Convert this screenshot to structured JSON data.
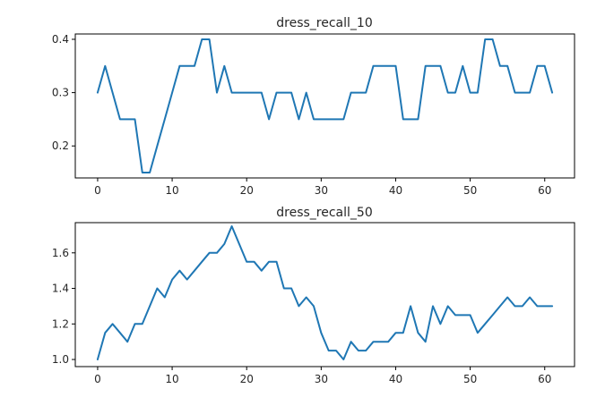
{
  "chart_data": [
    {
      "type": "line",
      "title": "dress_recall_10",
      "xlabel": "",
      "ylabel": "",
      "xlim": [
        -3,
        64
      ],
      "ylim": [
        0.14,
        0.41
      ],
      "xticks": [
        0,
        10,
        20,
        30,
        40,
        50,
        60
      ],
      "yticks": [
        0.2,
        0.3,
        0.4
      ],
      "ytick_labels": [
        "0.2",
        "0.3",
        "0.4"
      ],
      "grid": false,
      "series": [
        {
          "color": "#1f77b4",
          "x": [
            0,
            1,
            2,
            3,
            4,
            5,
            6,
            7,
            8,
            9,
            10,
            11,
            12,
            13,
            14,
            15,
            16,
            17,
            18,
            19,
            20,
            21,
            22,
            23,
            24,
            25,
            26,
            27,
            28,
            29,
            30,
            31,
            32,
            33,
            34,
            35,
            36,
            37,
            38,
            39,
            40,
            41,
            42,
            43,
            44,
            45,
            46,
            47,
            48,
            49,
            50,
            51,
            52,
            53,
            54,
            55,
            56,
            57,
            58,
            59,
            60,
            61
          ],
          "values": [
            0.3,
            0.35,
            0.3,
            0.25,
            0.25,
            0.25,
            0.15,
            0.15,
            0.2,
            0.25,
            0.3,
            0.35,
            0.35,
            0.35,
            0.4,
            0.4,
            0.3,
            0.35,
            0.3,
            0.3,
            0.3,
            0.3,
            0.3,
            0.25,
            0.3,
            0.3,
            0.3,
            0.25,
            0.3,
            0.25,
            0.25,
            0.25,
            0.25,
            0.25,
            0.3,
            0.3,
            0.3,
            0.35,
            0.35,
            0.35,
            0.35,
            0.25,
            0.25,
            0.25,
            0.35,
            0.35,
            0.35,
            0.3,
            0.3,
            0.35,
            0.3,
            0.3,
            0.4,
            0.4,
            0.35,
            0.35,
            0.3,
            0.3,
            0.3,
            0.35,
            0.35,
            0.3
          ]
        }
      ]
    },
    {
      "type": "line",
      "title": "dress_recall_50",
      "xlabel": "",
      "ylabel": "",
      "xlim": [
        -3,
        64
      ],
      "ylim": [
        0.96,
        1.77
      ],
      "xticks": [
        0,
        10,
        20,
        30,
        40,
        50,
        60
      ],
      "yticks": [
        1.0,
        1.2,
        1.4,
        1.6
      ],
      "ytick_labels": [
        "1.0",
        "1.2",
        "1.4",
        "1.6"
      ],
      "grid": false,
      "series": [
        {
          "color": "#1f77b4",
          "x": [
            0,
            1,
            2,
            3,
            4,
            5,
            6,
            7,
            8,
            9,
            10,
            11,
            12,
            13,
            14,
            15,
            16,
            17,
            18,
            19,
            20,
            21,
            22,
            23,
            24,
            25,
            26,
            27,
            28,
            29,
            30,
            31,
            32,
            33,
            34,
            35,
            36,
            37,
            38,
            39,
            40,
            41,
            42,
            43,
            44,
            45,
            46,
            47,
            48,
            49,
            50,
            51,
            52,
            53,
            54,
            55,
            56,
            57,
            58,
            59,
            60,
            61
          ],
          "values": [
            1.0,
            1.15,
            1.2,
            1.15,
            1.1,
            1.2,
            1.2,
            1.3,
            1.4,
            1.35,
            1.45,
            1.5,
            1.45,
            1.5,
            1.55,
            1.6,
            1.6,
            1.65,
            1.75,
            1.65,
            1.55,
            1.55,
            1.5,
            1.55,
            1.55,
            1.4,
            1.4,
            1.3,
            1.35,
            1.3,
            1.15,
            1.05,
            1.05,
            1.0,
            1.1,
            1.05,
            1.05,
            1.1,
            1.1,
            1.1,
            1.15,
            1.15,
            1.3,
            1.15,
            1.1,
            1.3,
            1.2,
            1.3,
            1.25,
            1.25,
            1.25,
            1.15,
            1.2,
            1.25,
            1.3,
            1.35,
            1.3,
            1.3,
            1.35,
            1.3,
            1.3,
            1.3
          ]
        }
      ]
    }
  ]
}
